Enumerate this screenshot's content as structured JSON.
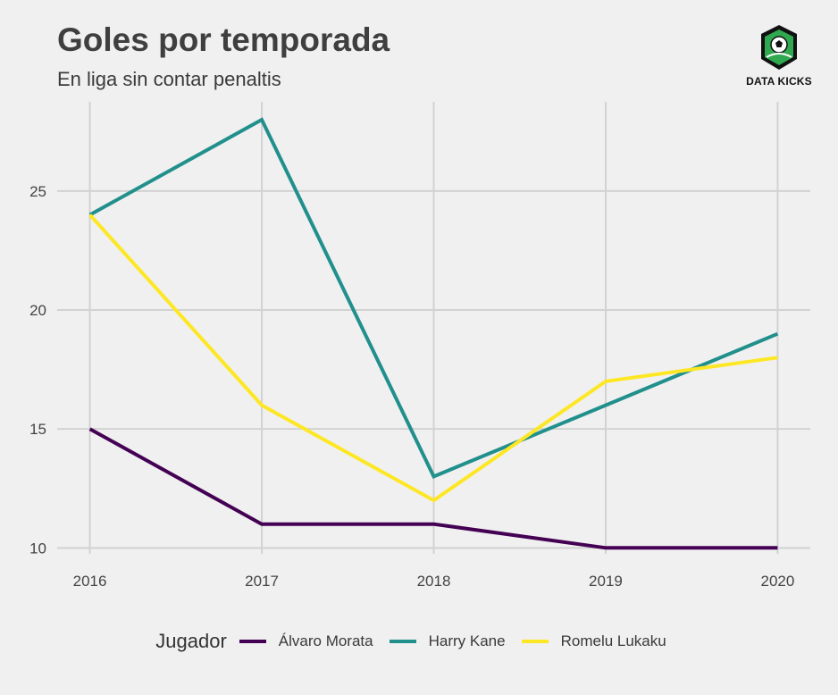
{
  "header": {
    "title": "Goles por temporada",
    "subtitle": "En liga sin contar penaltis"
  },
  "logo": {
    "text": "DATA KICKS",
    "icon": "football-shield-icon",
    "color": "#2fa84f"
  },
  "chart_data": {
    "type": "line",
    "title": "Goles por temporada",
    "subtitle": "En liga sin contar penaltis",
    "xlabel": "",
    "ylabel": "",
    "x": [
      2016,
      2017,
      2018,
      2019,
      2020
    ],
    "xticks": [
      "2016",
      "2017",
      "2018",
      "2019",
      "2020"
    ],
    "yticks": [
      10,
      15,
      20,
      25
    ],
    "ylim": [
      9.75,
      28.75
    ],
    "grid": true,
    "legend": {
      "title": "Jugador",
      "placement": "bottom"
    },
    "series": [
      {
        "name": "Álvaro Morata",
        "color": "#440154",
        "values": [
          15,
          11,
          11,
          10,
          10
        ]
      },
      {
        "name": "Harry Kane",
        "color": "#21908c",
        "values": [
          24,
          28,
          13,
          16,
          19
        ]
      },
      {
        "name": "Romelu Lukaku",
        "color": "#fde725",
        "values": [
          24,
          16,
          12,
          17,
          18
        ]
      }
    ]
  }
}
